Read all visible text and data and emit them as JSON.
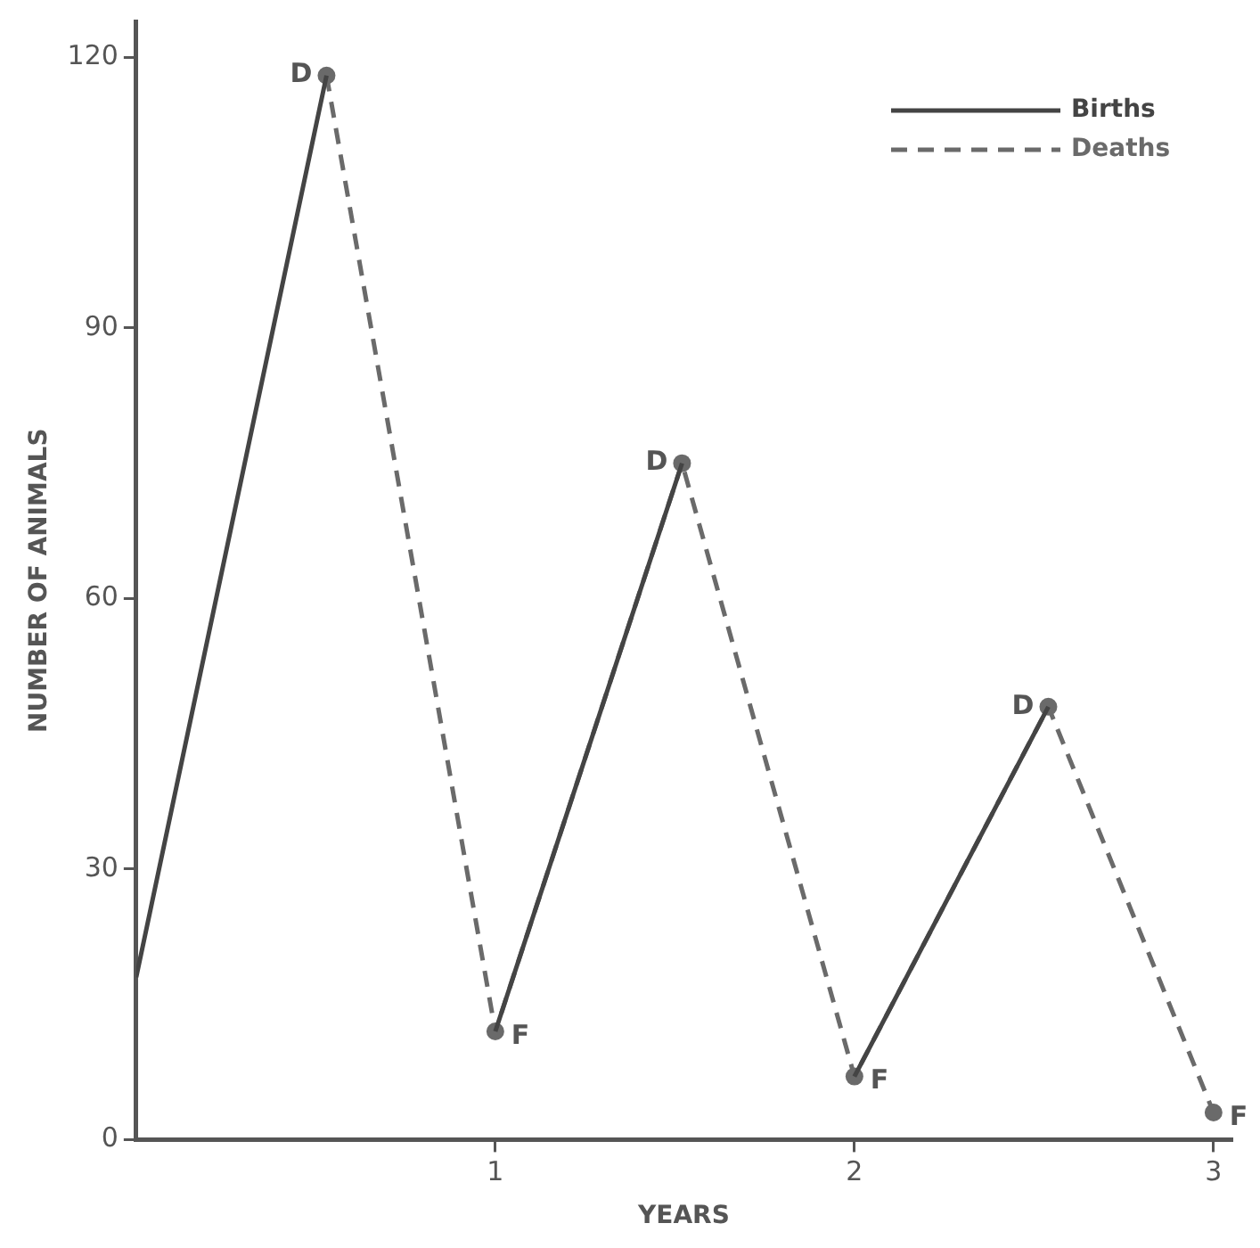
{
  "chart_data": {
    "type": "line",
    "xlabel": "YEARS",
    "ylabel": "NUMBER OF ANIMALS",
    "xlim": [
      0,
      3.05
    ],
    "xticks": [
      1,
      2,
      3
    ],
    "ylim": [
      0,
      124
    ],
    "yticks": [
      0,
      30,
      60,
      90,
      120
    ],
    "grid": false,
    "legend": "top right",
    "series": [
      {
        "name": "Births",
        "color": "#444444",
        "line_style": "solid",
        "marker": "none",
        "x": [
          0,
          0.53,
          0.8,
          1,
          1.52,
          1.8,
          2,
          2.54
        ],
        "values": [
          18,
          118,
          null,
          12,
          75,
          null,
          7,
          48
        ]
      },
      {
        "name": "Deaths",
        "color": "#6a6a6a",
        "line_style": "dashed",
        "marker": "circle",
        "x": [
          0.53,
          1,
          1.52,
          2,
          2.54,
          3
        ],
        "values": [
          118,
          12,
          75,
          7,
          48,
          3
        ]
      }
    ],
    "annotations": [
      {
        "text": "D",
        "x": 0.53,
        "y": 118
      },
      {
        "text": "F",
        "x": 1,
        "y": 12
      },
      {
        "text": "D",
        "x": 1.52,
        "y": 75
      },
      {
        "text": "F",
        "x": 2,
        "y": 7
      },
      {
        "text": "D",
        "x": 2.54,
        "y": 48
      },
      {
        "text": "F",
        "x": 3,
        "y": 3
      }
    ]
  }
}
